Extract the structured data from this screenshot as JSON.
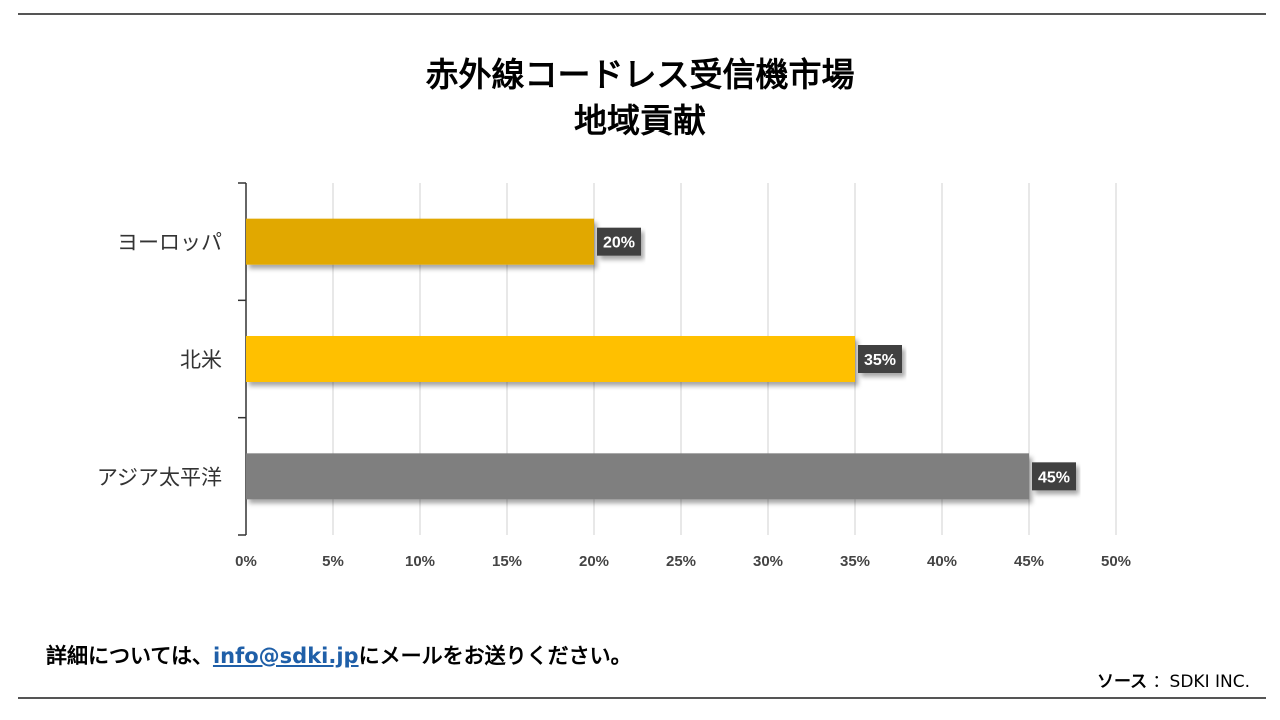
{
  "header": {
    "title_line1": "赤外線コードレス受信機市場",
    "title_line2": "地域貢献"
  },
  "chart_data": {
    "type": "bar",
    "orientation": "horizontal",
    "categories": [
      "ヨーロッパ",
      "北米",
      "アジア太平洋"
    ],
    "values": [
      20,
      35,
      45
    ],
    "value_labels": [
      "20%",
      "35%",
      "45%"
    ],
    "bar_colors": [
      "#e1a800",
      "#ffc000",
      "#7f7f7f"
    ],
    "xlim": [
      0,
      50
    ],
    "x_ticks": [
      "0%",
      "5%",
      "10%",
      "15%",
      "20%",
      "25%",
      "30%",
      "35%",
      "40%",
      "45%",
      "50%"
    ],
    "grid": true,
    "legend": "none"
  },
  "footer": {
    "note_prefix": "詳細については、",
    "email": "info@sdki.jp",
    "note_suffix": "にメールをお送りください。",
    "source_label": "ソース",
    "source_value": "：SDKI INC."
  }
}
